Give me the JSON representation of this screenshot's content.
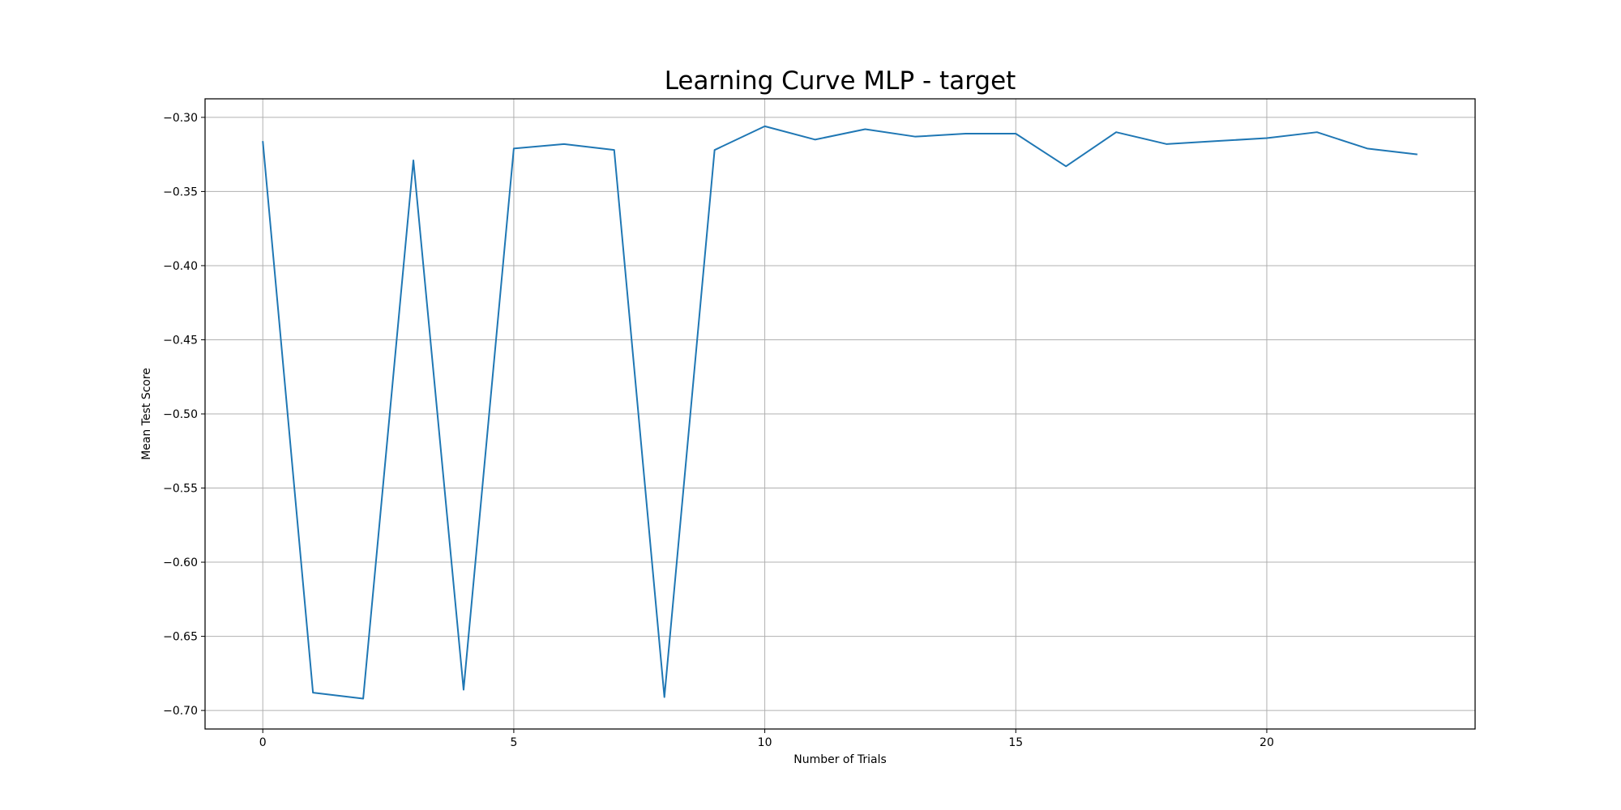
{
  "chart_data": {
    "type": "line",
    "title": "Learning Curve MLP - target",
    "xlabel": "Number of Trials",
    "ylabel": "Mean Test Score",
    "xlim": [
      -1.15,
      24.15
    ],
    "ylim": [
      -0.7125,
      -0.2875
    ],
    "xticks": [
      0,
      5,
      10,
      15,
      20
    ],
    "xtick_labels": [
      "0",
      "5",
      "10",
      "15",
      "20"
    ],
    "yticks": [
      -0.3,
      -0.35,
      -0.4,
      -0.45,
      -0.5,
      -0.55,
      -0.6,
      -0.65,
      -0.7
    ],
    "ytick_labels": [
      "−0.30",
      "−0.35",
      "−0.40",
      "−0.45",
      "−0.50",
      "−0.55",
      "−0.60",
      "−0.65",
      "−0.70"
    ],
    "grid": true,
    "legend": null,
    "series": [
      {
        "color": "#1f77b4",
        "x": [
          0,
          1,
          2,
          3,
          4,
          5,
          6,
          7,
          8,
          9,
          10,
          11,
          12,
          13,
          14,
          15,
          16,
          17,
          18,
          19,
          20,
          21,
          22,
          23
        ],
        "y": [
          -0.316,
          -0.688,
          -0.692,
          -0.329,
          -0.686,
          -0.321,
          -0.318,
          -0.322,
          -0.691,
          -0.322,
          -0.306,
          -0.315,
          -0.308,
          -0.313,
          -0.311,
          -0.311,
          -0.333,
          -0.31,
          -0.318,
          -0.316,
          -0.314,
          -0.31,
          -0.321,
          -0.325
        ]
      }
    ]
  }
}
